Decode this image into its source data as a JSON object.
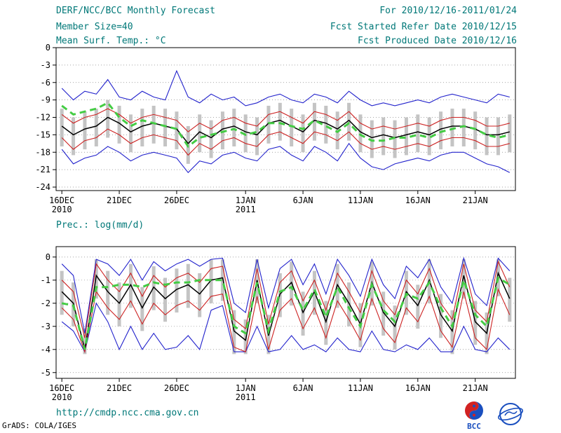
{
  "header": {
    "title": "DERF/NCC/BCC Monthly Forecast",
    "member_size": "Member Size=40",
    "temp_label": "Mean Surf. Temp.: °C",
    "for_range": "For 2010/12/16-2011/01/24",
    "refer_date": "Fcst Started Refer Date 2010/12/15",
    "produced_date": "Fcst Produced Date 2010/12/16"
  },
  "precip_label": "Prec.: log(mm/d)",
  "footer": {
    "url": "http://cmdp.ncc.cma.gov.cn",
    "grads": "GrADS: COLA/IGES",
    "bcc_logo_text": "BCC"
  },
  "colors": {
    "teal": "#007878",
    "blue": "#2222cc",
    "red": "#cc2222",
    "black": "#000000",
    "green": "#44cc44",
    "bar": "#c4c4c4",
    "grid": "#888888"
  },
  "chart_data": [
    {
      "type": "line",
      "name": "mean-surface-temperature",
      "title": "Mean Surf. Temp.: °C",
      "xlabel": "",
      "ylabel": "°C",
      "ylim": [
        -24.6,
        0
      ],
      "yticks": [
        0,
        -3,
        -6,
        -9,
        -12,
        -15,
        -18,
        -21,
        -24
      ],
      "grid": "horizontal-dotted",
      "x_count": 40,
      "xticks": [
        {
          "i": 0,
          "label": "16DEC",
          "sub": "2010"
        },
        {
          "i": 5,
          "label": "21DEC"
        },
        {
          "i": 10,
          "label": "26DEC"
        },
        {
          "i": 16,
          "label": "1JAN",
          "sub": "2011"
        },
        {
          "i": 21,
          "label": "6JAN"
        },
        {
          "i": 26,
          "label": "11JAN"
        },
        {
          "i": 31,
          "label": "16JAN"
        },
        {
          "i": 36,
          "label": "21JAN"
        }
      ],
      "bars": {
        "name": "ensemble-spread-bar",
        "high": [
          -10.5,
          -12,
          -11,
          -10.5,
          -9,
          -10,
          -11.5,
          -10.5,
          -10,
          -10.5,
          -11,
          -13.5,
          -11.5,
          -12.5,
          -11,
          -10.5,
          -11.5,
          -12,
          -10,
          -9.5,
          -10.5,
          -11.5,
          -9.5,
          -10,
          -11,
          -9.5,
          -11.5,
          -12.5,
          -12,
          -12.5,
          -12,
          -11.5,
          -12,
          -11,
          -10.5,
          -10.5,
          -11,
          -12,
          -12,
          -11.5
        ],
        "low": [
          -17,
          -18.5,
          -17.5,
          -17,
          -15.5,
          -16.5,
          -18,
          -17,
          -16.5,
          -17,
          -17.5,
          -20,
          -18,
          -19,
          -17.5,
          -17,
          -18,
          -18.5,
          -16.5,
          -16,
          -17,
          -18,
          -16,
          -16.5,
          -17.5,
          -16,
          -18,
          -19,
          -18.5,
          -19,
          -18.5,
          -18,
          -18.5,
          -17.5,
          -17,
          -17,
          -17.5,
          -18.5,
          -18.5,
          -18
        ]
      },
      "series": [
        {
          "name": "ensemble-max",
          "color_key": "blue",
          "width": 1.1,
          "dash": null,
          "values": [
            -7,
            -9,
            -7.5,
            -8,
            -5.5,
            -8.5,
            -9,
            -7.5,
            -8.5,
            -9,
            -4,
            -8.5,
            -9.5,
            -8,
            -9,
            -8.5,
            -10,
            -9.5,
            -8.5,
            -8,
            -9,
            -9.5,
            -8,
            -8.5,
            -9.5,
            -7.5,
            -9,
            -10,
            -9.5,
            -10,
            -9.5,
            -9,
            -9.5,
            -8.5,
            -8,
            -8.5,
            -9,
            -9.5,
            -8,
            -8.5
          ]
        },
        {
          "name": "ensemble-min",
          "color_key": "blue",
          "width": 1.1,
          "dash": null,
          "values": [
            -17.5,
            -20,
            -19,
            -18.5,
            -17,
            -18,
            -19.5,
            -18.5,
            -18,
            -18.5,
            -19,
            -21.5,
            -19.5,
            -20,
            -18.5,
            -18,
            -19,
            -19.5,
            -17.5,
            -17,
            -18.5,
            -19.5,
            -17,
            -18,
            -19.5,
            -16.5,
            -19,
            -20.5,
            -21,
            -20,
            -19.5,
            -19,
            -19.5,
            -18.5,
            -18,
            -18,
            -19,
            -20,
            -20.5,
            -21.5
          ]
        },
        {
          "name": "upper-quartile",
          "color_key": "red",
          "width": 1.1,
          "dash": null,
          "values": [
            -11.5,
            -13,
            -12,
            -11.5,
            -10.5,
            -11.5,
            -13,
            -12,
            -11.5,
            -12,
            -12.5,
            -14.5,
            -13,
            -14,
            -12.5,
            -12,
            -13,
            -13.5,
            -11.5,
            -11,
            -12,
            -13,
            -11,
            -11.5,
            -12.5,
            -11,
            -13,
            -14,
            -13.5,
            -14,
            -13.5,
            -13,
            -13.5,
            -12.5,
            -12,
            -12,
            -12.5,
            -13.5,
            -13.5,
            -13
          ]
        },
        {
          "name": "lower-quartile",
          "color_key": "red",
          "width": 1.1,
          "dash": null,
          "values": [
            -15.5,
            -17.5,
            -16,
            -15.5,
            -14,
            -15,
            -16.5,
            -15.5,
            -15,
            -15.5,
            -16,
            -18.5,
            -16.5,
            -17.5,
            -16,
            -15.5,
            -16.5,
            -17,
            -15,
            -14.5,
            -15.5,
            -16.5,
            -14.5,
            -15,
            -16,
            -14.5,
            -16.5,
            -17.5,
            -17,
            -17.5,
            -17,
            -16.5,
            -17,
            -16,
            -15.5,
            -15.5,
            -16,
            -17,
            -17,
            -16.5
          ]
        },
        {
          "name": "ensemble-mean",
          "color_key": "black",
          "width": 1.5,
          "dash": null,
          "values": [
            -13.5,
            -15,
            -14,
            -13.5,
            -12,
            -13,
            -14.5,
            -13.5,
            -13,
            -13.5,
            -14,
            -16.5,
            -14.5,
            -15.5,
            -14,
            -13.5,
            -14.5,
            -15,
            -13,
            -12.5,
            -13.5,
            -14.5,
            -12.5,
            -13,
            -14,
            -12.5,
            -14.5,
            -15.5,
            -15,
            -15.5,
            -15,
            -14.5,
            -15,
            -14,
            -13.5,
            -13.5,
            -14,
            -15,
            -15,
            -14.5
          ]
        },
        {
          "name": "climatology",
          "color_key": "green",
          "width": 3,
          "dash": "9 6",
          "values": [
            -10,
            -11.5,
            -11,
            -10.5,
            -9.5,
            -12,
            -13.5,
            -12.5,
            -13,
            -13.5,
            -14,
            -17,
            -15.5,
            -15,
            -14.5,
            -14,
            -15,
            -14.5,
            -13,
            -13,
            -13.5,
            -14,
            -12.5,
            -13.5,
            -14.5,
            -13,
            -15,
            -16,
            -16,
            -15.5,
            -15.5,
            -15,
            -15.5,
            -14.5,
            -14,
            -13.5,
            -14,
            -15,
            -15.5,
            -15
          ]
        }
      ]
    },
    {
      "type": "line",
      "name": "precipitation-log",
      "title": "Prec.: log(mm/d)",
      "xlabel": "",
      "ylabel": "log(mm/d)",
      "ylim": [
        -5.25,
        0.45
      ],
      "yticks": [
        0,
        -1,
        -2,
        -3,
        -4,
        -5
      ],
      "grid": "horizontal-dotted",
      "x_count": 40,
      "xticks": [
        {
          "i": 0,
          "label": "16DEC",
          "sub": "2010"
        },
        {
          "i": 5,
          "label": "21DEC"
        },
        {
          "i": 10,
          "label": "26DEC"
        },
        {
          "i": 16,
          "label": "1JAN",
          "sub": "2011"
        },
        {
          "i": 21,
          "label": "6JAN"
        },
        {
          "i": 26,
          "label": "11JAN"
        },
        {
          "i": 31,
          "label": "16JAN"
        },
        {
          "i": 36,
          "label": "21JAN"
        }
      ],
      "bars": {
        "name": "ensemble-spread-bar",
        "high": [
          -0.6,
          -1.1,
          -3.1,
          -0.1,
          -0.6,
          -1.1,
          -0.3,
          -1.3,
          -0.4,
          -0.9,
          -0.5,
          -0.3,
          -0.7,
          -0.1,
          -0.1,
          -2.3,
          -2.7,
          -0.1,
          -2.5,
          -0.7,
          -0.2,
          -1.5,
          -0.6,
          -1.9,
          -0.3,
          -1.1,
          -2,
          -0.2,
          -1.5,
          -2.1,
          -0.6,
          -1.2,
          -0.1,
          -1.6,
          -2.3,
          -0.1,
          -1.9,
          -2.4,
          -0.1,
          -0.9
        ],
        "low": [
          -2.5,
          -3,
          -4.2,
          -1.8,
          -2.5,
          -3,
          -2.2,
          -3.2,
          -2.3,
          -2.8,
          -2.4,
          -2.2,
          -2.6,
          -2,
          -1.9,
          -4.2,
          -4.2,
          -2,
          -4.2,
          -2.6,
          -2.1,
          -3.4,
          -2.5,
          -3.8,
          -2.2,
          -3,
          -3.9,
          -2.1,
          -3.4,
          -4,
          -2.5,
          -3.1,
          -2,
          -3.5,
          -4.2,
          -1.8,
          -3.8,
          -4.2,
          -1.7,
          -2.8
        ]
      },
      "series": [
        {
          "name": "ensemble-max",
          "color_key": "blue",
          "width": 1.1,
          "dash": null,
          "values": [
            -0.3,
            -0.8,
            -3.3,
            -0.1,
            -0.3,
            -0.8,
            -0.1,
            -1,
            -0.2,
            -0.6,
            -0.3,
            -0.1,
            -0.4,
            -0.1,
            -0.05,
            -2,
            -2.4,
            -0.1,
            -2.2,
            -0.5,
            -0.1,
            -1.2,
            -0.3,
            -1.6,
            -0.1,
            -0.8,
            -1.7,
            -0.1,
            -1.2,
            -1.8,
            -0.4,
            -0.9,
            -0.1,
            -1.3,
            -2,
            -0.05,
            -1.6,
            -2.1,
            -0.05,
            -0.6
          ]
        },
        {
          "name": "ensemble-min",
          "color_key": "blue",
          "width": 1.1,
          "dash": null,
          "values": [
            -2.8,
            -3.2,
            -4.1,
            -2,
            -2.8,
            -4,
            -3,
            -4,
            -3.3,
            -4,
            -3.9,
            -3.4,
            -4,
            -2.3,
            -2.1,
            -4.1,
            -4.1,
            -3,
            -4.1,
            -4,
            -3.4,
            -4,
            -3.8,
            -4.1,
            -3.5,
            -4,
            -4.1,
            -3.2,
            -4,
            -4.1,
            -3.8,
            -4,
            -3.5,
            -4.1,
            -4.1,
            -3,
            -4,
            -4.1,
            -3.5,
            -4
          ]
        },
        {
          "name": "upper-quartile",
          "color_key": "red",
          "width": 1.1,
          "dash": null,
          "values": [
            -1,
            -1.5,
            -3.5,
            -0.3,
            -1,
            -1.5,
            -0.7,
            -1.7,
            -0.8,
            -1.3,
            -0.9,
            -0.7,
            -1.1,
            -0.5,
            -0.4,
            -2.7,
            -3.1,
            -0.5,
            -2.9,
            -1.1,
            -0.6,
            -1.9,
            -1,
            -2.3,
            -0.7,
            -1.5,
            -2.4,
            -0.6,
            -1.9,
            -2.5,
            -1,
            -1.6,
            -0.5,
            -2,
            -2.7,
            -0.3,
            -2.3,
            -2.8,
            -0.2,
            -1.3
          ]
        },
        {
          "name": "lower-quartile",
          "color_key": "red",
          "width": 1.1,
          "dash": null,
          "values": [
            -2.2,
            -2.7,
            -4.1,
            -1.5,
            -2.2,
            -2.7,
            -1.9,
            -2.9,
            -2,
            -2.5,
            -2.1,
            -1.9,
            -2.3,
            -1.7,
            -1.6,
            -3.9,
            -4.1,
            -1.7,
            -4,
            -2.3,
            -1.8,
            -3.1,
            -2.2,
            -3.5,
            -1.9,
            -2.7,
            -3.6,
            -1.8,
            -3.1,
            -3.7,
            -2.2,
            -2.8,
            -1.7,
            -3.2,
            -3.9,
            -1.5,
            -3.5,
            -4,
            -1.4,
            -2.5
          ]
        },
        {
          "name": "ensemble-mean",
          "color_key": "black",
          "width": 1.5,
          "dash": null,
          "values": [
            -1.5,
            -2,
            -4,
            -0.8,
            -1.5,
            -2,
            -1.2,
            -2.2,
            -1.3,
            -1.8,
            -1.4,
            -1.2,
            -1.6,
            -1,
            -0.9,
            -3.2,
            -3.6,
            -1,
            -3.4,
            -1.6,
            -1.1,
            -2.4,
            -1.5,
            -2.8,
            -1.2,
            -2,
            -2.9,
            -1.1,
            -2.4,
            -3,
            -1.5,
            -2.1,
            -1,
            -2.5,
            -3.2,
            -0.8,
            -2.8,
            -3.3,
            -0.7,
            -1.8
          ]
        },
        {
          "name": "climatology",
          "color_key": "green",
          "width": 3,
          "dash": "9 6",
          "values": [
            -2,
            -2.1,
            -4,
            -1.3,
            -1.3,
            -1.2,
            -1.2,
            -1.3,
            -1.1,
            -1.2,
            -1.1,
            -1.1,
            -1,
            -1,
            -1,
            -3,
            -3.3,
            -1.1,
            -3.2,
            -1.5,
            -1.3,
            -2.3,
            -1.4,
            -2.6,
            -1.3,
            -2.2,
            -3,
            -1.2,
            -2.3,
            -2.8,
            -1.6,
            -1.8,
            -1.1,
            -2.2,
            -3,
            -1,
            -2.5,
            -3,
            -0.9,
            -1.2
          ]
        }
      ]
    }
  ]
}
